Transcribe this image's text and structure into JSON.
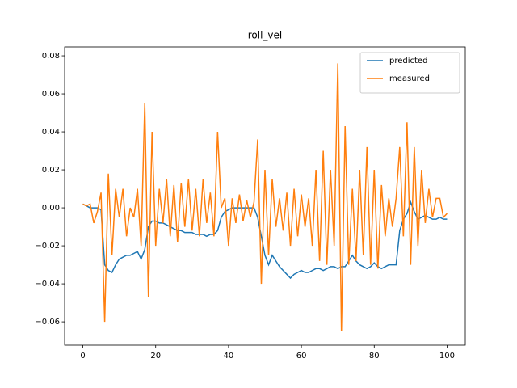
{
  "chart_data": {
    "type": "line",
    "title": "roll_vel",
    "x": [
      0,
      1,
      2,
      3,
      4,
      5,
      6,
      7,
      8,
      9,
      10,
      11,
      12,
      13,
      14,
      15,
      16,
      17,
      18,
      19,
      20,
      21,
      22,
      23,
      24,
      25,
      26,
      27,
      28,
      29,
      30,
      31,
      32,
      33,
      34,
      35,
      36,
      37,
      38,
      39,
      40,
      41,
      42,
      43,
      44,
      45,
      46,
      47,
      48,
      49,
      50,
      51,
      52,
      53,
      54,
      55,
      56,
      57,
      58,
      59,
      60,
      61,
      62,
      63,
      64,
      65,
      66,
      67,
      68,
      69,
      70,
      71,
      72,
      73,
      74,
      75,
      76,
      77,
      78,
      79,
      80,
      81,
      82,
      83,
      84,
      85,
      86,
      87,
      88,
      89,
      90,
      91,
      92,
      93,
      94,
      95,
      96,
      97,
      98,
      99,
      100
    ],
    "series": [
      {
        "name": "predicted",
        "color": "#1f77b4",
        "values": [
          0.002,
          0.001,
          0.0,
          0.0,
          0.0,
          -0.001,
          -0.03,
          -0.033,
          -0.034,
          -0.03,
          -0.027,
          -0.026,
          -0.025,
          -0.025,
          -0.024,
          -0.023,
          -0.027,
          -0.022,
          -0.01,
          -0.007,
          -0.007,
          -0.008,
          -0.008,
          -0.009,
          -0.01,
          -0.011,
          -0.012,
          -0.012,
          -0.013,
          -0.013,
          -0.013,
          -0.014,
          -0.014,
          -0.014,
          -0.015,
          -0.014,
          -0.014,
          -0.012,
          -0.005,
          -0.002,
          -0.001,
          0.0,
          0.0,
          0.0,
          0.0,
          0.0,
          0.0,
          0.0,
          -0.005,
          -0.015,
          -0.025,
          -0.03,
          -0.025,
          -0.028,
          -0.031,
          -0.033,
          -0.035,
          -0.037,
          -0.035,
          -0.034,
          -0.033,
          -0.034,
          -0.034,
          -0.033,
          -0.032,
          -0.032,
          -0.033,
          -0.032,
          -0.031,
          -0.031,
          -0.032,
          -0.031,
          -0.031,
          -0.028,
          -0.025,
          -0.028,
          -0.03,
          -0.031,
          -0.032,
          -0.031,
          -0.029,
          -0.031,
          -0.032,
          -0.031,
          -0.03,
          -0.03,
          -0.03,
          -0.012,
          -0.006,
          -0.003,
          0.003,
          -0.002,
          -0.006,
          -0.005,
          -0.004,
          -0.005,
          -0.006,
          -0.006,
          -0.005,
          -0.006,
          -0.006
        ]
      },
      {
        "name": "measured",
        "color": "#ff7f0e",
        "values": [
          0.002,
          0.001,
          0.002,
          -0.008,
          -0.002,
          0.008,
          -0.06,
          0.018,
          -0.025,
          0.01,
          -0.005,
          0.01,
          -0.015,
          0.0,
          -0.005,
          0.01,
          -0.02,
          0.055,
          -0.047,
          0.04,
          -0.02,
          0.01,
          -0.008,
          0.015,
          -0.015,
          0.012,
          -0.018,
          0.013,
          -0.01,
          0.015,
          -0.012,
          0.01,
          -0.015,
          0.015,
          -0.008,
          0.008,
          -0.015,
          0.04,
          0.0,
          0.005,
          -0.02,
          0.005,
          -0.008,
          0.007,
          -0.007,
          0.004,
          -0.005,
          0.003,
          0.036,
          -0.04,
          0.02,
          -0.025,
          0.015,
          -0.01,
          0.005,
          -0.012,
          0.008,
          -0.02,
          0.01,
          -0.015,
          0.007,
          -0.01,
          0.005,
          -0.02,
          0.02,
          -0.028,
          0.03,
          -0.03,
          0.02,
          -0.02,
          0.076,
          -0.065,
          0.043,
          -0.03,
          0.01,
          -0.028,
          0.02,
          -0.025,
          0.032,
          -0.03,
          0.02,
          -0.032,
          0.012,
          -0.015,
          0.005,
          -0.01,
          0.005,
          0.032,
          -0.015,
          0.045,
          -0.03,
          0.032,
          -0.02,
          0.02,
          -0.008,
          0.01,
          -0.005,
          0.005,
          0.005,
          -0.005,
          -0.003
        ]
      }
    ],
    "xlim": [
      -5,
      105
    ],
    "ylim": [
      -0.0723,
      0.0847
    ],
    "xticks": [
      0,
      20,
      40,
      60,
      80,
      100
    ],
    "yticks": [
      {
        "value": -0.06,
        "label": "−0.06"
      },
      {
        "value": -0.04,
        "label": "−0.04"
      },
      {
        "value": -0.02,
        "label": "−0.02"
      },
      {
        "value": 0,
        "label": "0.00"
      },
      0.02,
      0.04,
      0.06,
      0.08
    ],
    "legend": "upper right"
  }
}
